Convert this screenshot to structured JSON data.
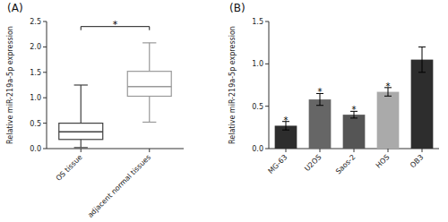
{
  "chart_data": [
    {
      "type": "box",
      "title": "(A)",
      "ylabel": "Relative miR-219a-5p expression",
      "categories": [
        "OS tissue",
        "adjacent normal tissues"
      ],
      "boxes": [
        {
          "whisker_low": 0.02,
          "q1": 0.18,
          "median": 0.33,
          "q3": 0.5,
          "whisker_high": 1.25
        },
        {
          "whisker_low": 0.52,
          "q1": 1.03,
          "median": 1.22,
          "q3": 1.52,
          "whisker_high": 2.08
        }
      ],
      "colors": [
        "#404040",
        "#999999"
      ],
      "annotations": [
        {
          "text": "*",
          "y": 2.4,
          "start": 0,
          "end": 1
        }
      ],
      "ylim": [
        0,
        2.5
      ],
      "yticks": [
        {
          "value": 0,
          "label": "0.0"
        },
        0.5,
        {
          "value": 1,
          "label": "1.0"
        },
        1.5,
        {
          "value": 2,
          "label": "2.0"
        },
        2.5
      ]
    },
    {
      "type": "bar",
      "title": "(B)",
      "ylabel": "Relative miR-219a-5p expression",
      "categories": [
        "MG-63",
        "U2OS",
        "Saos-2",
        "HOS",
        "OB3"
      ],
      "values": [
        0.27,
        0.58,
        0.4,
        0.67,
        1.05
      ],
      "errors": [
        0.05,
        0.07,
        0.04,
        0.05,
        0.15
      ],
      "colors": [
        "#2d2d2d",
        "#666666",
        "#555555",
        "#aaaaaa",
        "#2d2d2d"
      ],
      "annotations": [
        "*",
        "*",
        "*",
        "*",
        null
      ],
      "ylim": [
        0,
        1.5
      ],
      "yticks": [
        {
          "value": 0,
          "label": "0.0"
        },
        0.5,
        {
          "value": 1,
          "label": "1.0"
        },
        1.5
      ]
    }
  ]
}
